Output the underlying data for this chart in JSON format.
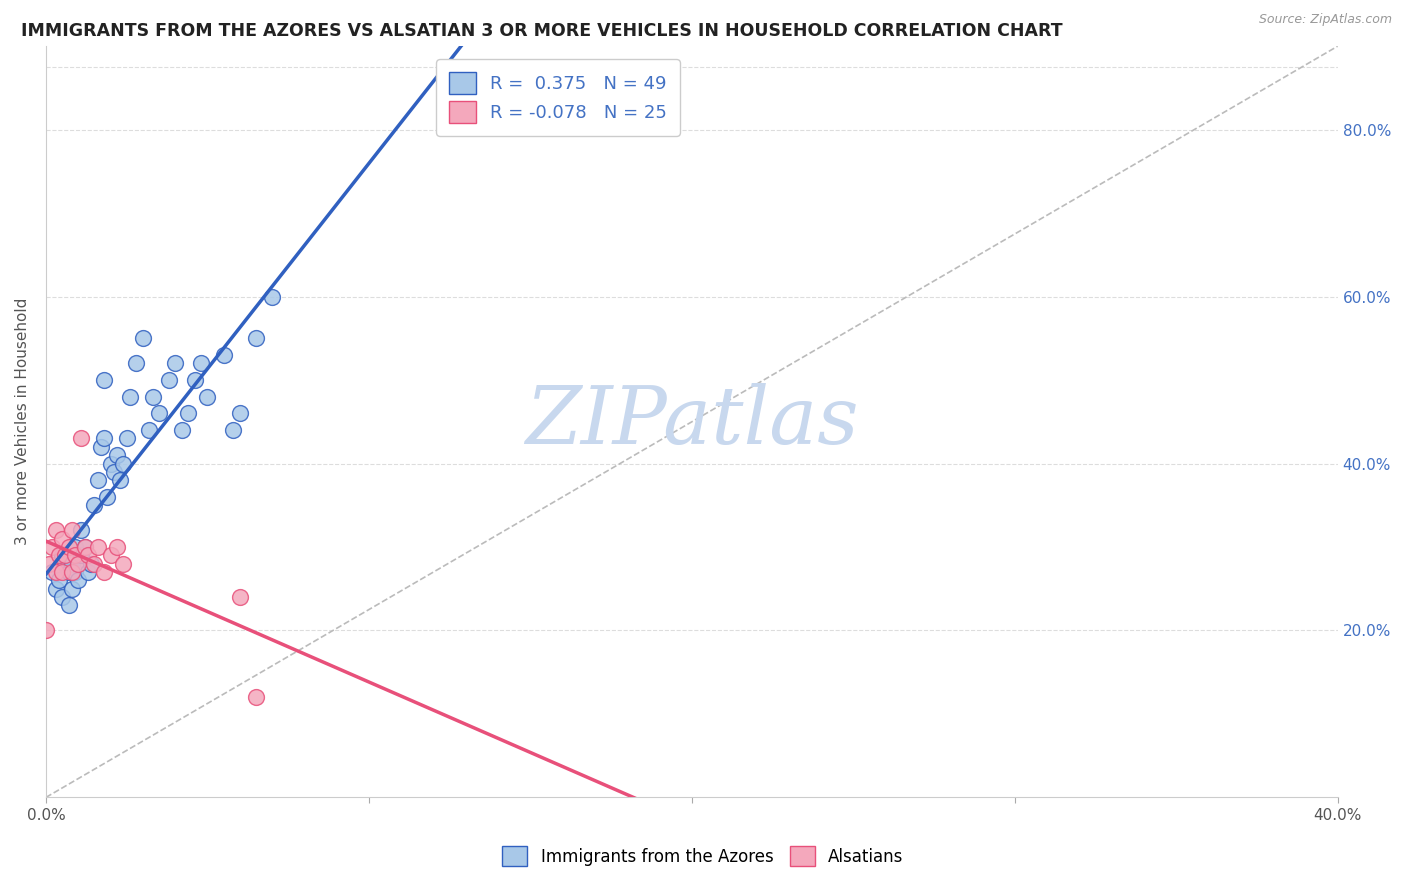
{
  "title": "IMMIGRANTS FROM THE AZORES VS ALSATIAN 3 OR MORE VEHICLES IN HOUSEHOLD CORRELATION CHART",
  "source_text": "Source: ZipAtlas.com",
  "ylabel": "3 or more Vehicles in Household",
  "legend_label1": "Immigrants from the Azores",
  "legend_label2": "Alsatians",
  "r1": 0.375,
  "n1": 49,
  "r2": -0.078,
  "n2": 25,
  "xlim": [
    0.0,
    0.4
  ],
  "ylim": [
    0.0,
    0.9
  ],
  "xtick_vals": [
    0.0,
    0.1,
    0.2,
    0.3,
    0.4
  ],
  "xtick_labels": [
    "0.0%",
    "",
    "",
    "",
    "40.0%"
  ],
  "ytick_right_vals": [
    0.2,
    0.4,
    0.6,
    0.8
  ],
  "ytick_right_labels": [
    "20.0%",
    "40.0%",
    "60.0%",
    "80.0%"
  ],
  "color_blue": "#A8C8E8",
  "color_pink": "#F4A8BC",
  "line_blue": "#3060C0",
  "line_pink": "#E8507A",
  "line_dashed_color": "#BBBBBB",
  "watermark": "ZIPatlas",
  "watermark_color": "#C8D8EE",
  "blue_scatter_x": [
    0.002,
    0.003,
    0.004,
    0.005,
    0.005,
    0.006,
    0.007,
    0.007,
    0.008,
    0.008,
    0.009,
    0.009,
    0.01,
    0.01,
    0.011,
    0.011,
    0.012,
    0.013,
    0.014,
    0.015,
    0.016,
    0.017,
    0.018,
    0.018,
    0.019,
    0.02,
    0.021,
    0.022,
    0.023,
    0.024,
    0.025,
    0.026,
    0.028,
    0.03,
    0.032,
    0.033,
    0.035,
    0.038,
    0.04,
    0.042,
    0.044,
    0.046,
    0.048,
    0.05,
    0.055,
    0.058,
    0.06,
    0.065,
    0.07
  ],
  "blue_scatter_y": [
    0.27,
    0.25,
    0.26,
    0.29,
    0.24,
    0.28,
    0.27,
    0.23,
    0.28,
    0.25,
    0.27,
    0.3,
    0.26,
    0.28,
    0.29,
    0.32,
    0.3,
    0.27,
    0.28,
    0.35,
    0.38,
    0.42,
    0.43,
    0.5,
    0.36,
    0.4,
    0.39,
    0.41,
    0.38,
    0.4,
    0.43,
    0.48,
    0.52,
    0.55,
    0.44,
    0.48,
    0.46,
    0.5,
    0.52,
    0.44,
    0.46,
    0.5,
    0.52,
    0.48,
    0.53,
    0.44,
    0.46,
    0.55,
    0.6
  ],
  "pink_scatter_x": [
    0.0,
    0.001,
    0.002,
    0.003,
    0.003,
    0.004,
    0.005,
    0.005,
    0.006,
    0.007,
    0.008,
    0.008,
    0.009,
    0.01,
    0.011,
    0.012,
    0.013,
    0.015,
    0.016,
    0.018,
    0.02,
    0.022,
    0.024,
    0.06,
    0.065
  ],
  "pink_scatter_y": [
    0.2,
    0.28,
    0.3,
    0.27,
    0.32,
    0.29,
    0.31,
    0.27,
    0.29,
    0.3,
    0.27,
    0.32,
    0.29,
    0.28,
    0.43,
    0.3,
    0.29,
    0.28,
    0.3,
    0.27,
    0.29,
    0.3,
    0.28,
    0.24,
    0.12
  ]
}
